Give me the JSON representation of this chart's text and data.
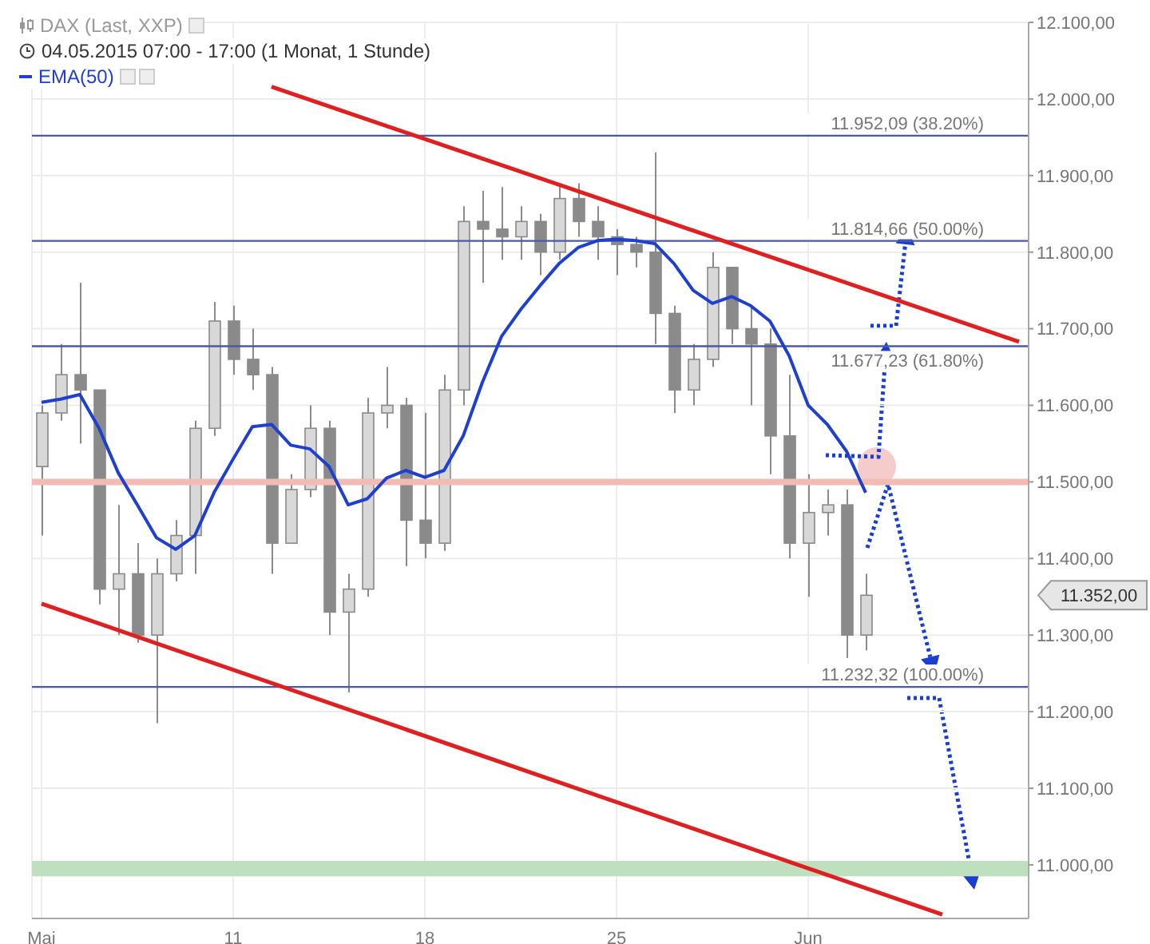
{
  "chart_data": {
    "type": "candlestick",
    "title": "DAX (Last, XXP)",
    "subtitle": "04.05.2015 07:00 - 17:00 (1 Monat, 1 Stunde)",
    "categories": [
      "Mai",
      null,
      null,
      null,
      null,
      null,
      null,
      null,
      null,
      null,
      "11",
      null,
      null,
      null,
      null,
      null,
      null,
      null,
      null,
      null,
      "18",
      null,
      null,
      null,
      null,
      null,
      null,
      null,
      null,
      null,
      "25",
      null,
      null,
      null,
      null,
      null,
      null,
      null,
      null,
      null,
      "Jun",
      null,
      null,
      null,
      null,
      null,
      null,
      null,
      null,
      null,
      null,
      null
    ],
    "ohlc": [
      [
        11520,
        11600,
        11430,
        11590
      ],
      [
        11590,
        11680,
        11580,
        11640
      ],
      [
        11640,
        11760,
        11550,
        11620
      ],
      [
        11620,
        11620,
        11340,
        11360
      ],
      [
        11360,
        11470,
        11300,
        11380
      ],
      [
        11380,
        11420,
        11290,
        11300
      ],
      [
        11300,
        11400,
        11185,
        11380
      ],
      [
        11380,
        11450,
        11370,
        11430
      ],
      [
        11430,
        11580,
        11380,
        11570
      ],
      [
        11570,
        11735,
        11560,
        11710
      ],
      [
        11710,
        11730,
        11640,
        11660
      ],
      [
        11660,
        11700,
        11620,
        11640
      ],
      [
        11640,
        11650,
        11380,
        11420
      ],
      [
        11420,
        11510,
        11420,
        11490
      ],
      [
        11490,
        11600,
        11480,
        11570
      ],
      [
        11570,
        11580,
        11300,
        11330
      ],
      [
        11330,
        11380,
        11225,
        11360
      ],
      [
        11360,
        11610,
        11350,
        11590
      ],
      [
        11590,
        11650,
        11570,
        11600
      ],
      [
        11600,
        11610,
        11390,
        11450
      ],
      [
        11450,
        11590,
        11400,
        11420
      ],
      [
        11420,
        11640,
        11410,
        11620
      ],
      [
        11620,
        11860,
        11600,
        11840
      ],
      [
        11840,
        11880,
        11760,
        11830
      ],
      [
        11830,
        11885,
        11790,
        11820
      ],
      [
        11820,
        11860,
        11790,
        11840
      ],
      [
        11840,
        11850,
        11770,
        11800
      ],
      [
        11800,
        11885,
        11790,
        11870
      ],
      [
        11870,
        11890,
        11820,
        11840
      ],
      [
        11840,
        11860,
        11790,
        11820
      ],
      [
        11820,
        11830,
        11770,
        11810
      ],
      [
        11810,
        11820,
        11780,
        11800
      ],
      [
        11800,
        11930,
        11680,
        11720
      ],
      [
        11720,
        11730,
        11590,
        11620
      ],
      [
        11620,
        11680,
        11600,
        11660
      ],
      [
        11660,
        11800,
        11650,
        11780
      ],
      [
        11780,
        11780,
        11680,
        11700
      ],
      [
        11700,
        11730,
        11600,
        11680
      ],
      [
        11680,
        11700,
        11510,
        11560
      ],
      [
        11560,
        11640,
        11400,
        11420
      ],
      [
        11420,
        11510,
        11350,
        11460
      ],
      [
        11460,
        11490,
        11430,
        11470
      ],
      [
        11470,
        11490,
        11270,
        11300
      ],
      [
        11300,
        11380,
        11280,
        11352
      ],
      null,
      null,
      null,
      null,
      null,
      null,
      null,
      null
    ],
    "color": "#8a8a8a",
    "series": [
      {
        "name": "EMA(50)",
        "type": "line",
        "color": "#1f3fd0",
        "values": [
          11604,
          11608,
          11614,
          11570,
          11512,
          11470,
          11427,
          11412,
          11430,
          11486,
          11530,
          11572,
          11575,
          11548,
          11543,
          11520,
          11470,
          11478,
          11505,
          11515,
          11506,
          11515,
          11560,
          11630,
          11690,
          11725,
          11756,
          11785,
          11806,
          11815,
          11817,
          11815,
          11811,
          11785,
          11750,
          11733,
          11742,
          11730,
          11710,
          11665,
          11600,
          11575,
          11540,
          11486,
          null,
          null,
          null,
          null,
          null,
          null,
          null,
          null
        ]
      },
      {
        "type": "line",
        "color": "#e02020",
        "values": [
          null,
          null,
          null,
          null,
          null,
          null,
          null,
          null,
          null,
          null,
          null,
          null,
          12016,
          null,
          null,
          null,
          null,
          null,
          null,
          null,
          null,
          null,
          null,
          null,
          null,
          null,
          null,
          null,
          null,
          null,
          null,
          null,
          null,
          null,
          null,
          null,
          null,
          null,
          null,
          null,
          null,
          null,
          null,
          null,
          null,
          null,
          null,
          null,
          null,
          null,
          null,
          11683
        ]
      },
      {
        "type": "line",
        "color": "#e02020",
        "values": [
          11341,
          null,
          null,
          null,
          null,
          null,
          null,
          null,
          null,
          null,
          null,
          null,
          null,
          null,
          null,
          null,
          null,
          null,
          null,
          null,
          null,
          null,
          null,
          null,
          null,
          null,
          null,
          null,
          null,
          null,
          null,
          null,
          null,
          null,
          null,
          null,
          null,
          null,
          null,
          null,
          null,
          null,
          null,
          null,
          null,
          null,
          null,
          10935,
          null,
          null,
          null,
          null
        ]
      }
    ],
    "ylim": [
      10930,
      12100
    ],
    "yticks": [
      {
        "value": 11000,
        "label": "11.000,00"
      },
      {
        "value": 11100,
        "label": "11.100,00"
      },
      {
        "value": 11200,
        "label": "11.200,00"
      },
      {
        "value": 11300,
        "label": "11.300,00"
      },
      {
        "value": 11400,
        "label": "11.400,00"
      },
      {
        "value": 11500,
        "label": "11.500,00"
      },
      {
        "value": 11600,
        "label": "11.600,00"
      },
      {
        "value": 11700,
        "label": "11.700,00"
      },
      {
        "value": 11800,
        "label": "11.800,00"
      },
      {
        "value": 11900,
        "label": "11.900,00"
      },
      {
        "value": 12000,
        "label": "12.000,00"
      },
      {
        "value": 12100,
        "label": "12.100,00"
      }
    ],
    "ref_lines": [
      {
        "axis": "y",
        "value": 11952.09,
        "label": "11.952,09 (38.20%)",
        "color": "#4a5aa8"
      },
      {
        "axis": "y",
        "value": 11814.66,
        "label": "11.814,66 (50.00%)",
        "color": "#4a5aa8"
      },
      {
        "axis": "y",
        "value": 11677.23,
        "label": "11.677,23 (61.80%)",
        "color": "#4a5aa8"
      },
      {
        "axis": "y",
        "value": 11232.32,
        "label": "11.232,32 (100.00%)",
        "color": "#4a5aa8"
      },
      {
        "axis": "y",
        "value": 11500,
        "color": "#f2bcb4"
      }
    ],
    "bands": [
      {
        "axis": "y",
        "from": 10985,
        "to": 11005,
        "color": "#bfe0bf"
      }
    ],
    "annotations": [
      "11.352,00"
    ],
    "grid": true,
    "legend": "top left"
  }
}
